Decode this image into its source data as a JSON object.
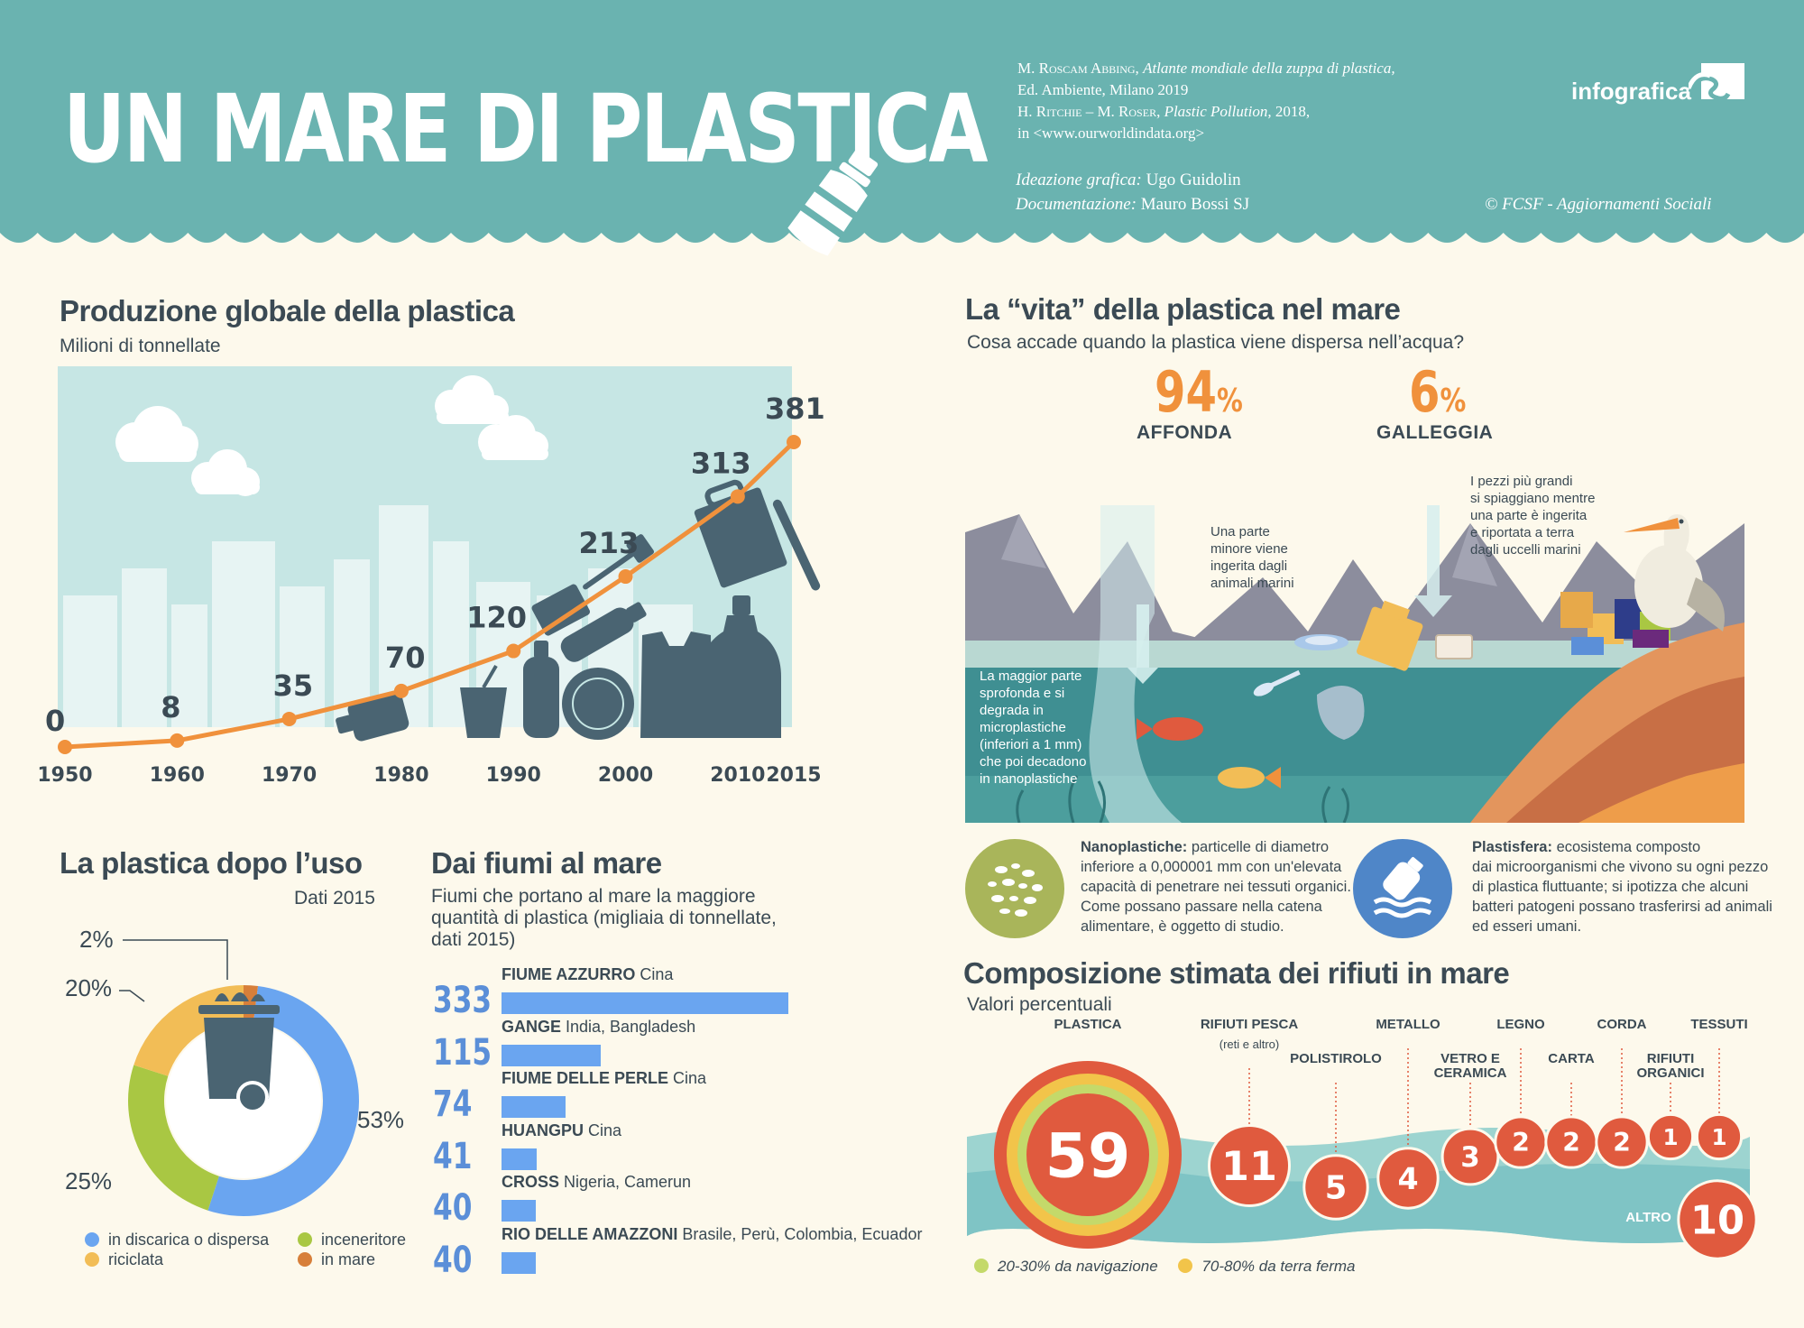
{
  "header": {
    "title": "UN MARE DI PLASTICA",
    "source1_author": "M. Roscam Abbing,",
    "source1_title": "Atlante mondiale della zuppa di plastica,",
    "source1_pub": "Ed. Ambiente, Milano 2019",
    "source2_author": "H. Ritchie – M. Roser,",
    "source2_title": "Plastic Pollution,",
    "source2_year": "2018,",
    "source2_url": "in <www.ourworldindata.org>",
    "credit1_role": "Ideazione grafica:",
    "credit1_name": "Ugo Guidolin",
    "credit2_role": "Documentazione:",
    "credit2_name": "Mauro Bossi  SJ",
    "brand": "infografica",
    "copyright": "© FCSF - Aggiornamenti Sociali"
  },
  "production": {
    "title": "Produzione globale della plastica",
    "subtitle": "Milioni di tonnellate"
  },
  "after_use": {
    "title": "La plastica dopo l’uso",
    "subtitle": "Dati 2015",
    "legend": {
      "landfill": "in discarica o dispersa",
      "incinerator": "inceneritore",
      "recycled": "riciclata",
      "sea": "in mare"
    }
  },
  "rivers": {
    "title": "Dai fiumi al mare",
    "subtitle_l1": "Fiumi che portano al mare la maggiore",
    "subtitle_l2": "quantità di plastica (migliaia di tonnellate,",
    "subtitle_l3": "dati 2015)"
  },
  "life": {
    "title": "La “vita” della plastica nel mare",
    "subtitle": "Cosa accade quando la plastica viene dispersa nell’acqua?",
    "sink_pct": "94",
    "sink_label": "AFFONDA",
    "float_pct": "6",
    "float_label": "GALLEGGIA",
    "pct_sign": "%",
    "note_ingested": [
      "Una parte",
      "minore viene",
      "ingerita dagli",
      "animali marini"
    ],
    "note_beach": [
      "I pezzi più grandi",
      "si spiaggiano mentre",
      "una parte è ingerita",
      "e riportata a terra",
      "dagli uccelli marini"
    ],
    "note_sink": [
      "La maggior parte",
      "sprofonda e si",
      "degrada in",
      "microplastiche",
      "(inferiori a 1 mm)",
      "che poi decadono",
      "in nanoplastiche"
    ],
    "nano_term": "Nanoplastiche:",
    "nano_text_l1": "particelle di diametro",
    "nano_text_l2": "inferiore a 0,000001 mm con un'elevata",
    "nano_text_l3": "capacità di penetrare nei tessuti organici.",
    "nano_text_l4": "Come possano passare nella catena",
    "nano_text_l5": "alimentare, è oggetto di studio.",
    "plasti_term": "Plastisfera:",
    "plasti_text_l1": "ecosistema composto",
    "plasti_text_l2": "dai microorganismi che vivono su ogni pezzo",
    "plasti_text_l3": "di plastica fluttuante; si ipotizza che alcuni",
    "plasti_text_l4": "batteri patogeni possano trasferirsi ad animali",
    "plasti_text_l5": "ed esseri umani."
  },
  "composition": {
    "title": "Composizione stimata dei rifiuti in mare",
    "subtitle": "Valori percentuali",
    "fishing_sub": "(reti e altro)",
    "legend_navigation": "20-30% da navigazione",
    "legend_land": "70-80% da terra ferma"
  },
  "colors": {
    "header_bg": "#6ab3b0",
    "orange_line": "#f0913c",
    "slate": "#4a6472",
    "blue": "#6aa5f0",
    "green": "#a9c743",
    "yellow": "#f2bd56",
    "brown": "#d77f3a",
    "red": "#e05a3e"
  },
  "chart_data": [
    {
      "type": "line",
      "title": "Produzione globale della plastica",
      "ylabel": "Milioni di tonnellate",
      "x": [
        "1950",
        "1960",
        "1970",
        "1980",
        "1990",
        "2000",
        "2010",
        "2015"
      ],
      "values": [
        0,
        8,
        35,
        70,
        120,
        213,
        313,
        381
      ],
      "labels": [
        "0",
        "8",
        "35",
        "70",
        "120",
        "213",
        "313",
        "381"
      ]
    },
    {
      "type": "pie",
      "title": "La plastica dopo l’uso",
      "subtitle": "Dati 2015",
      "slices": [
        {
          "name": "in discarica o dispersa",
          "value": 53,
          "label": "53%",
          "color": "#6aa5f0"
        },
        {
          "name": "inceneritore",
          "value": 25,
          "label": "25%",
          "color": "#a9c743"
        },
        {
          "name": "riciclata",
          "value": 20,
          "label": "20%",
          "color": "#f2bd56"
        },
        {
          "name": "in mare",
          "value": 2,
          "label": "2%",
          "color": "#d77f3a"
        }
      ]
    },
    {
      "type": "bar",
      "title": "Dai fiumi al mare",
      "rows": [
        {
          "name": "FIUME AZZURRO",
          "country": "Cina",
          "value": 333,
          "label": "333"
        },
        {
          "name": "GANGE",
          "country": "India, Bangladesh",
          "value": 115,
          "label": "115"
        },
        {
          "name": "FIUME DELLE PERLE",
          "country": "Cina",
          "value": 74,
          "label": "74"
        },
        {
          "name": "HUANGPU",
          "country": "Cina",
          "value": 41,
          "label": "41"
        },
        {
          "name": "CROSS",
          "country": "Nigeria, Camerun",
          "value": 40,
          "label": "40"
        },
        {
          "name": "RIO DELLE AMAZZONI",
          "country": "Brasile, Perù, Colombia, Ecuador",
          "value": 40,
          "label": "40"
        }
      ]
    },
    {
      "type": "bubble",
      "title": "Composizione stimata dei rifiuti in mare",
      "subtitle": "Valori percentuali",
      "items": [
        {
          "name": "PLASTICA",
          "value": 59,
          "label": "59"
        },
        {
          "name": "RIFIUTI PESCA",
          "value": 11,
          "label": "11"
        },
        {
          "name": "POLISTIROLO",
          "value": 5,
          "label": "5"
        },
        {
          "name": "METALLO",
          "value": 4,
          "label": "4"
        },
        {
          "name": "VETRO E CERAMICA",
          "value": 3,
          "label": "3"
        },
        {
          "name": "LEGNO",
          "value": 2,
          "label": "2"
        },
        {
          "name": "CARTA",
          "value": 2,
          "label": "2"
        },
        {
          "name": "CORDA",
          "value": 2,
          "label": "2"
        },
        {
          "name": "RIFIUTI ORGANICI",
          "value": 1,
          "label": "1"
        },
        {
          "name": "TESSUTI",
          "value": 1,
          "label": "1"
        },
        {
          "name": "ALTRO",
          "value": 10,
          "label": "10"
        }
      ]
    }
  ]
}
